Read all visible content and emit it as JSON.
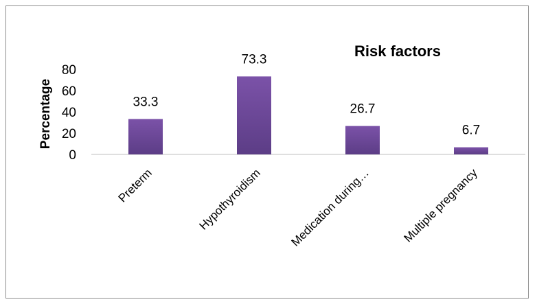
{
  "chart_data": {
    "type": "bar",
    "title": "Risk factors",
    "xlabel": "",
    "ylabel": "Percentage",
    "categories": [
      "Preterm",
      "Hypothyroidism",
      "Medication during…",
      "Multiple pregnancy"
    ],
    "values": [
      33.3,
      73.3,
      26.7,
      6.7
    ],
    "data_labels": [
      "33.3",
      "73.3",
      "26.7",
      "6.7"
    ],
    "ylim": [
      0,
      80
    ],
    "yticks": [
      0,
      20,
      40,
      60,
      80
    ],
    "grid": false,
    "legend": "none",
    "bar_color": "#7b52a8",
    "bar_color_dark": "#5c3d86"
  }
}
